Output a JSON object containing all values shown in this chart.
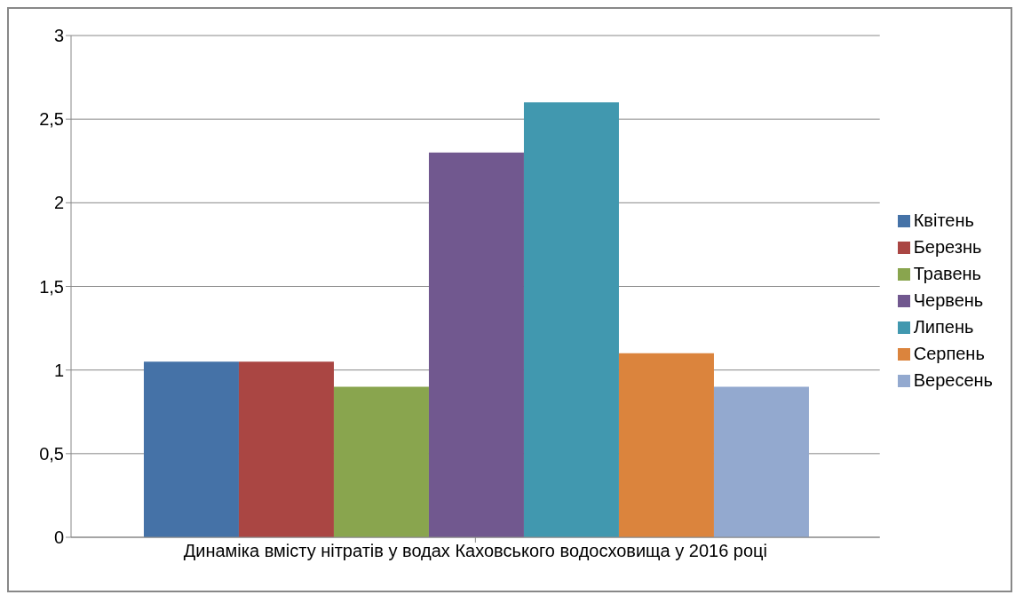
{
  "chart_data": {
    "type": "bar",
    "categories": [
      "Динаміка вмісту нітратів у водах Каховського водосховища у 2016 році"
    ],
    "series": [
      {
        "name": "Квітень",
        "color": "#4572a7",
        "values": [
          1.05
        ]
      },
      {
        "name": "Березнь",
        "color": "#aa4643",
        "values": [
          1.05
        ]
      },
      {
        "name": "Травень",
        "color": "#89a54e",
        "values": [
          0.9
        ]
      },
      {
        "name": "Червень",
        "color": "#71588f",
        "values": [
          2.3
        ]
      },
      {
        "name": "Липень",
        "color": "#4198af",
        "values": [
          2.6
        ]
      },
      {
        "name": "Серпень",
        "color": "#db843d",
        "values": [
          1.1
        ]
      },
      {
        "name": "Вересень",
        "color": "#93a9cf",
        "values": [
          0.9
        ]
      }
    ],
    "ylim": [
      0,
      3
    ],
    "yticks": [
      0,
      {
        "value": 0.5,
        "label": "0,5"
      },
      1,
      {
        "value": 1.5,
        "label": "1,5"
      },
      2,
      {
        "value": 2.5,
        "label": "2,5"
      },
      3
    ],
    "grid": "y",
    "legend": "right"
  }
}
